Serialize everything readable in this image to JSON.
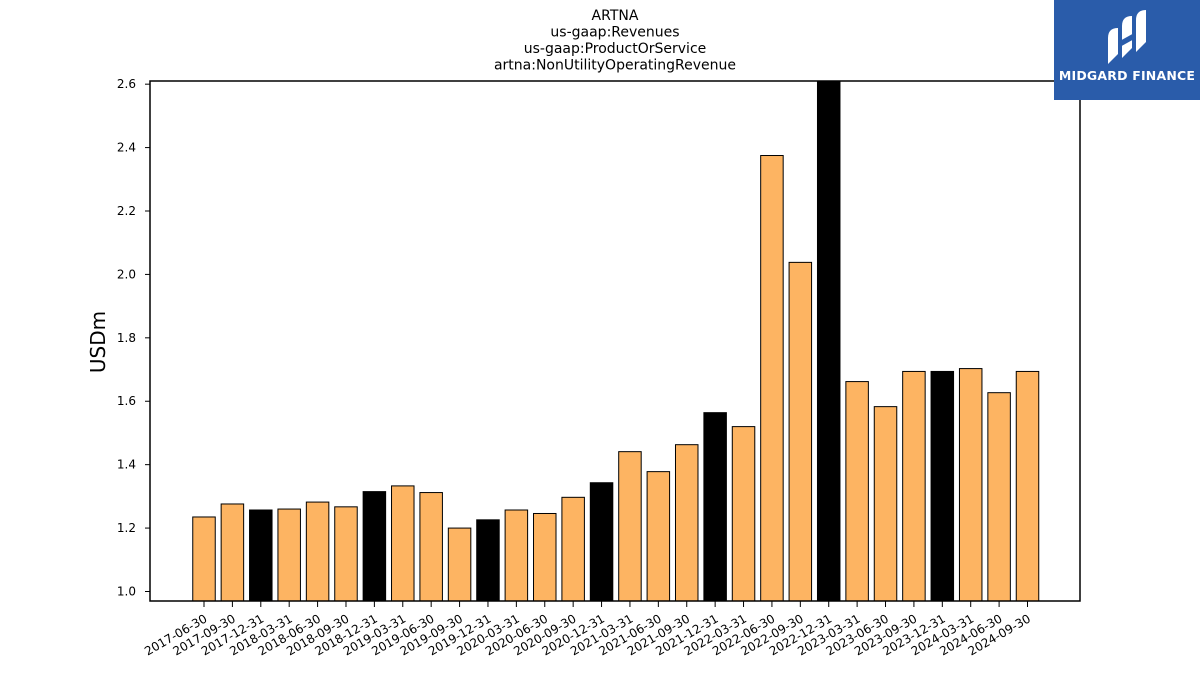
{
  "logo": {
    "text": "MIDGARD FINANCE",
    "icon": "midgard-logo-icon",
    "background": "#2a5caa"
  },
  "chart_data": {
    "type": "bar",
    "title": [
      "ARTNA",
      "us-gaap:Revenues",
      "us-gaap:ProductOrService",
      "artna:NonUtilityOperatingRevenue"
    ],
    "xlabel": "",
    "ylabel": "USDm",
    "ylim": [
      0.97,
      2.61
    ],
    "yticks": [
      "1.0",
      "1.2",
      "1.4",
      "1.6",
      "1.8",
      "2.0",
      "2.2",
      "2.4",
      "2.6"
    ],
    "grid": false,
    "colors": {
      "quarter": "#fdb462",
      "year_end": "#000000",
      "edge": "#000000"
    },
    "categories": [
      "2017-06-30",
      "2017-09-30",
      "2017-12-31",
      "2018-03-31",
      "2018-06-30",
      "2018-09-30",
      "2018-12-31",
      "2019-03-31",
      "2019-06-30",
      "2019-09-30",
      "2019-12-31",
      "2020-03-31",
      "2020-06-30",
      "2020-09-30",
      "2020-12-31",
      "2021-03-31",
      "2021-06-30",
      "2021-09-30",
      "2021-12-31",
      "2022-03-31",
      "2022-06-30",
      "2022-09-30",
      "2022-12-31",
      "2023-03-31",
      "2023-06-30",
      "2023-09-30",
      "2023-12-31",
      "2024-03-31",
      "2024-06-30",
      "2024-09-30"
    ],
    "values": [
      1.235,
      1.276,
      1.257,
      1.26,
      1.282,
      1.267,
      1.315,
      1.333,
      1.312,
      1.2,
      1.226,
      1.257,
      1.246,
      1.297,
      1.343,
      1.441,
      1.378,
      1.463,
      1.564,
      1.52,
      2.375,
      2.038,
      2.62,
      1.662,
      1.583,
      1.694,
      1.694,
      1.703,
      1.627,
      1.694
    ],
    "year_end": [
      false,
      false,
      true,
      false,
      false,
      false,
      true,
      false,
      false,
      false,
      true,
      false,
      false,
      false,
      true,
      false,
      false,
      false,
      true,
      false,
      false,
      false,
      true,
      false,
      false,
      false,
      true,
      false,
      false,
      false
    ]
  }
}
